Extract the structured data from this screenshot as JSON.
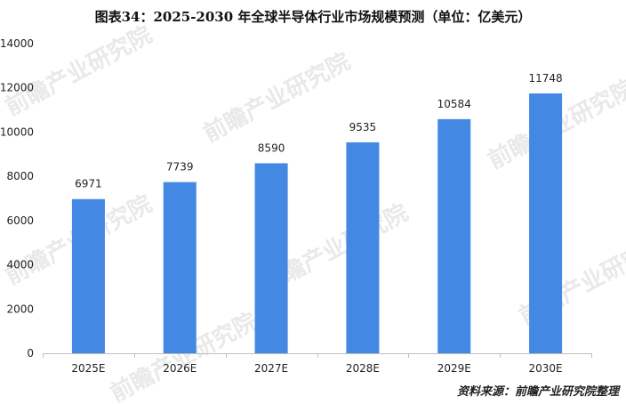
{
  "chart_data": {
    "type": "bar",
    "title": "图表34：2025-2030 年全球半导体行业市场规模预测（单位：亿美元）",
    "categories": [
      "2025E",
      "2026E",
      "2027E",
      "2028E",
      "2029E",
      "2030E"
    ],
    "values": [
      6971,
      7739,
      8590,
      9535,
      10584,
      11748
    ],
    "data_labels": [
      "6971",
      "7739",
      "8590",
      "9535",
      "10584",
      "11748"
    ],
    "ylim": [
      0,
      14000
    ],
    "y_ticks": [
      "0",
      "2000",
      "4000",
      "6000",
      "8000",
      "10000",
      "12000",
      "14000"
    ],
    "grid": false,
    "legend": "none",
    "bar_color": "#4388e3",
    "watermark": "前瞻产业研究院"
  },
  "source": "资料来源：前瞻产业研究院整理"
}
